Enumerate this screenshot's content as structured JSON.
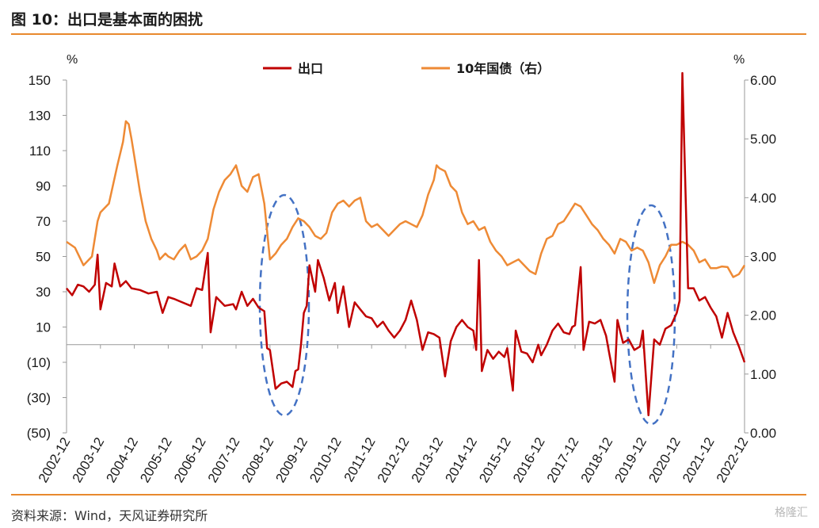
{
  "header": {
    "title": "图 10：出口是基本面的困扰"
  },
  "footer": {
    "source": "资料来源：Wind，天风证券研究所",
    "watermark": "格隆汇"
  },
  "colors": {
    "export": "#C00000",
    "bond": "#EE8A35",
    "ellipse": "#4472C4",
    "rule": "#E8892E"
  },
  "chart_data": {
    "type": "line",
    "title": "",
    "left_unit": "%",
    "right_unit": "%",
    "left_axis": {
      "min": -50,
      "max": 150,
      "ticks": [
        150,
        130,
        110,
        90,
        70,
        50,
        30,
        10,
        -10,
        -30,
        -50
      ],
      "tick_labels": [
        "150",
        "130",
        "110",
        "90",
        "70",
        "50",
        "30",
        "10",
        "(10)",
        "(30)",
        "(50)"
      ]
    },
    "right_axis": {
      "min": 0,
      "max": 6,
      "ticks": [
        6,
        5,
        4,
        3,
        2,
        1,
        0
      ],
      "tick_labels": [
        "6.00",
        "5.00",
        "4.00",
        "3.00",
        "2.00",
        "1.00",
        "0.00"
      ]
    },
    "x_range": [
      "2002-12",
      "2022-12"
    ],
    "x_ticks": [
      "2002-12",
      "2003-12",
      "2004-12",
      "2005-12",
      "2006-12",
      "2007-12",
      "2008-12",
      "2009-12",
      "2010-12",
      "2011-12",
      "2012-12",
      "2013-12",
      "2014-12",
      "2015-12",
      "2016-12",
      "2017-12",
      "2018-12",
      "2019-12",
      "2020-12",
      "2021-12",
      "2022-12"
    ],
    "legend": {
      "placement": "top-center"
    },
    "series": [
      {
        "name": "出口",
        "axis": "left",
        "points": [
          [
            "2002-12",
            32
          ],
          [
            "2003-02",
            28
          ],
          [
            "2003-04",
            34
          ],
          [
            "2003-06",
            33
          ],
          [
            "2003-08",
            30
          ],
          [
            "2003-10",
            34
          ],
          [
            "2003-11",
            51
          ],
          [
            "2003-12",
            20
          ],
          [
            "2004-02",
            35
          ],
          [
            "2004-04",
            33
          ],
          [
            "2004-05",
            46
          ],
          [
            "2004-07",
            33
          ],
          [
            "2004-09",
            36
          ],
          [
            "2004-11",
            32
          ],
          [
            "2005-02",
            31
          ],
          [
            "2005-05",
            29
          ],
          [
            "2005-08",
            30
          ],
          [
            "2005-10",
            18
          ],
          [
            "2005-12",
            27
          ],
          [
            "2006-02",
            26
          ],
          [
            "2006-05",
            24
          ],
          [
            "2006-08",
            22
          ],
          [
            "2006-10",
            32
          ],
          [
            "2006-12",
            31
          ],
          [
            "2007-02",
            52
          ],
          [
            "2007-03",
            7
          ],
          [
            "2007-05",
            27
          ],
          [
            "2007-08",
            22
          ],
          [
            "2007-11",
            23
          ],
          [
            "2007-12",
            20
          ],
          [
            "2008-02",
            30
          ],
          [
            "2008-04",
            22
          ],
          [
            "2008-06",
            26
          ],
          [
            "2008-08",
            21
          ],
          [
            "2008-10",
            19
          ],
          [
            "2008-11",
            -2
          ],
          [
            "2008-12",
            -3
          ],
          [
            "2009-02",
            -25
          ],
          [
            "2009-04",
            -22
          ],
          [
            "2009-06",
            -21
          ],
          [
            "2009-08",
            -24
          ],
          [
            "2009-09",
            -15
          ],
          [
            "2009-10",
            -14
          ],
          [
            "2009-11",
            0
          ],
          [
            "2009-12",
            18
          ],
          [
            "2010-01",
            22
          ],
          [
            "2010-02",
            45
          ],
          [
            "2010-04",
            30
          ],
          [
            "2010-05",
            48
          ],
          [
            "2010-07",
            38
          ],
          [
            "2010-09",
            25
          ],
          [
            "2010-11",
            35
          ],
          [
            "2010-12",
            18
          ],
          [
            "2011-02",
            33
          ],
          [
            "2011-04",
            10
          ],
          [
            "2011-06",
            24
          ],
          [
            "2011-08",
            20
          ],
          [
            "2011-10",
            16
          ],
          [
            "2011-12",
            15
          ],
          [
            "2012-02",
            10
          ],
          [
            "2012-04",
            13
          ],
          [
            "2012-06",
            8
          ],
          [
            "2012-08",
            4
          ],
          [
            "2012-10",
            8
          ],
          [
            "2012-12",
            14
          ],
          [
            "2013-02",
            25
          ],
          [
            "2013-04",
            14
          ],
          [
            "2013-06",
            -3
          ],
          [
            "2013-08",
            7
          ],
          [
            "2013-10",
            6
          ],
          [
            "2013-12",
            4
          ],
          [
            "2014-02",
            -18
          ],
          [
            "2014-04",
            2
          ],
          [
            "2014-06",
            10
          ],
          [
            "2014-08",
            14
          ],
          [
            "2014-10",
            10
          ],
          [
            "2014-12",
            8
          ],
          [
            "2015-01",
            -3
          ],
          [
            "2015-02",
            48
          ],
          [
            "2015-03",
            -15
          ],
          [
            "2015-05",
            -3
          ],
          [
            "2015-07",
            -8
          ],
          [
            "2015-09",
            -4
          ],
          [
            "2015-11",
            -7
          ],
          [
            "2015-12",
            -2
          ],
          [
            "2016-02",
            -26
          ],
          [
            "2016-03",
            8
          ],
          [
            "2016-05",
            -4
          ],
          [
            "2016-07",
            -5
          ],
          [
            "2016-09",
            -10
          ],
          [
            "2016-11",
            0
          ],
          [
            "2016-12",
            -6
          ],
          [
            "2017-02",
            0
          ],
          [
            "2017-04",
            8
          ],
          [
            "2017-06",
            12
          ],
          [
            "2017-08",
            7
          ],
          [
            "2017-10",
            6
          ],
          [
            "2017-11",
            10
          ],
          [
            "2017-12",
            11
          ],
          [
            "2018-02",
            44
          ],
          [
            "2018-03",
            -3
          ],
          [
            "2018-05",
            13
          ],
          [
            "2018-07",
            12
          ],
          [
            "2018-09",
            14
          ],
          [
            "2018-11",
            5
          ],
          [
            "2018-12",
            -4
          ],
          [
            "2019-02",
            -21
          ],
          [
            "2019-03",
            14
          ],
          [
            "2019-05",
            1
          ],
          [
            "2019-07",
            3
          ],
          [
            "2019-09",
            -3
          ],
          [
            "2019-11",
            -1
          ],
          [
            "2019-12",
            8
          ],
          [
            "2020-02",
            -40
          ],
          [
            "2020-04",
            3
          ],
          [
            "2020-06",
            0
          ],
          [
            "2020-08",
            9
          ],
          [
            "2020-10",
            11
          ],
          [
            "2020-12",
            18
          ],
          [
            "2021-01",
            25
          ],
          [
            "2021-02",
            154
          ],
          [
            "2021-04",
            32
          ],
          [
            "2021-06",
            32
          ],
          [
            "2021-08",
            25
          ],
          [
            "2021-10",
            27
          ],
          [
            "2021-12",
            21
          ],
          [
            "2022-02",
            16
          ],
          [
            "2022-04",
            4
          ],
          [
            "2022-06",
            18
          ],
          [
            "2022-08",
            7
          ],
          [
            "2022-10",
            -1
          ],
          [
            "2022-12",
            -10
          ]
        ]
      },
      {
        "name": "10年国债（右）",
        "axis": "right",
        "points": [
          [
            "2002-12",
            3.25
          ],
          [
            "2003-03",
            3.15
          ],
          [
            "2003-06",
            2.85
          ],
          [
            "2003-09",
            3.0
          ],
          [
            "2003-11",
            3.6
          ],
          [
            "2003-12",
            3.75
          ],
          [
            "2004-03",
            3.9
          ],
          [
            "2004-06",
            4.55
          ],
          [
            "2004-08",
            4.95
          ],
          [
            "2004-09",
            5.3
          ],
          [
            "2004-10",
            5.25
          ],
          [
            "2004-11",
            5.0
          ],
          [
            "2004-12",
            4.7
          ],
          [
            "2005-02",
            4.1
          ],
          [
            "2005-04",
            3.6
          ],
          [
            "2005-06",
            3.3
          ],
          [
            "2005-08",
            3.1
          ],
          [
            "2005-09",
            2.95
          ],
          [
            "2005-11",
            3.05
          ],
          [
            "2005-12",
            3.0
          ],
          [
            "2006-02",
            2.95
          ],
          [
            "2006-04",
            3.1
          ],
          [
            "2006-06",
            3.2
          ],
          [
            "2006-08",
            2.95
          ],
          [
            "2006-10",
            3.0
          ],
          [
            "2006-12",
            3.1
          ],
          [
            "2007-02",
            3.3
          ],
          [
            "2007-04",
            3.8
          ],
          [
            "2007-06",
            4.1
          ],
          [
            "2007-08",
            4.3
          ],
          [
            "2007-10",
            4.4
          ],
          [
            "2007-12",
            4.55
          ],
          [
            "2008-02",
            4.2
          ],
          [
            "2008-04",
            4.1
          ],
          [
            "2008-06",
            4.35
          ],
          [
            "2008-08",
            4.4
          ],
          [
            "2008-10",
            3.9
          ],
          [
            "2008-12",
            2.95
          ],
          [
            "2009-02",
            3.05
          ],
          [
            "2009-04",
            3.2
          ],
          [
            "2009-06",
            3.3
          ],
          [
            "2009-08",
            3.5
          ],
          [
            "2009-10",
            3.65
          ],
          [
            "2009-12",
            3.6
          ],
          [
            "2010-02",
            3.5
          ],
          [
            "2010-04",
            3.35
          ],
          [
            "2010-06",
            3.3
          ],
          [
            "2010-08",
            3.4
          ],
          [
            "2010-10",
            3.75
          ],
          [
            "2010-12",
            3.9
          ],
          [
            "2011-02",
            3.95
          ],
          [
            "2011-04",
            3.85
          ],
          [
            "2011-06",
            3.95
          ],
          [
            "2011-08",
            4.0
          ],
          [
            "2011-10",
            3.6
          ],
          [
            "2011-12",
            3.5
          ],
          [
            "2012-02",
            3.55
          ],
          [
            "2012-04",
            3.45
          ],
          [
            "2012-06",
            3.35
          ],
          [
            "2012-08",
            3.45
          ],
          [
            "2012-10",
            3.55
          ],
          [
            "2012-12",
            3.6
          ],
          [
            "2013-02",
            3.55
          ],
          [
            "2013-04",
            3.5
          ],
          [
            "2013-06",
            3.7
          ],
          [
            "2013-08",
            4.05
          ],
          [
            "2013-10",
            4.3
          ],
          [
            "2013-11",
            4.55
          ],
          [
            "2013-12",
            4.5
          ],
          [
            "2014-02",
            4.45
          ],
          [
            "2014-04",
            4.2
          ],
          [
            "2014-06",
            4.1
          ],
          [
            "2014-08",
            3.75
          ],
          [
            "2014-10",
            3.55
          ],
          [
            "2014-12",
            3.6
          ],
          [
            "2015-02",
            3.45
          ],
          [
            "2015-04",
            3.5
          ],
          [
            "2015-06",
            3.25
          ],
          [
            "2015-08",
            3.1
          ],
          [
            "2015-10",
            3.0
          ],
          [
            "2015-12",
            2.85
          ],
          [
            "2016-02",
            2.9
          ],
          [
            "2016-04",
            2.95
          ],
          [
            "2016-06",
            2.85
          ],
          [
            "2016-08",
            2.75
          ],
          [
            "2016-10",
            2.7
          ],
          [
            "2016-12",
            3.05
          ],
          [
            "2017-02",
            3.3
          ],
          [
            "2017-04",
            3.35
          ],
          [
            "2017-06",
            3.55
          ],
          [
            "2017-08",
            3.6
          ],
          [
            "2017-10",
            3.75
          ],
          [
            "2017-12",
            3.9
          ],
          [
            "2018-02",
            3.85
          ],
          [
            "2018-04",
            3.7
          ],
          [
            "2018-06",
            3.55
          ],
          [
            "2018-08",
            3.45
          ],
          [
            "2018-10",
            3.3
          ],
          [
            "2018-12",
            3.2
          ],
          [
            "2019-02",
            3.05
          ],
          [
            "2019-04",
            3.3
          ],
          [
            "2019-06",
            3.25
          ],
          [
            "2019-08",
            3.1
          ],
          [
            "2019-10",
            3.15
          ],
          [
            "2019-12",
            3.1
          ],
          [
            "2020-02",
            2.9
          ],
          [
            "2020-04",
            2.55
          ],
          [
            "2020-06",
            2.85
          ],
          [
            "2020-08",
            3.0
          ],
          [
            "2020-10",
            3.2
          ],
          [
            "2020-12",
            3.2
          ],
          [
            "2021-02",
            3.25
          ],
          [
            "2021-04",
            3.2
          ],
          [
            "2021-06",
            3.1
          ],
          [
            "2021-08",
            2.9
          ],
          [
            "2021-10",
            2.95
          ],
          [
            "2021-12",
            2.8
          ],
          [
            "2022-02",
            2.8
          ],
          [
            "2022-04",
            2.83
          ],
          [
            "2022-06",
            2.82
          ],
          [
            "2022-08",
            2.65
          ],
          [
            "2022-10",
            2.7
          ],
          [
            "2022-12",
            2.85
          ]
        ]
      }
    ]
  }
}
